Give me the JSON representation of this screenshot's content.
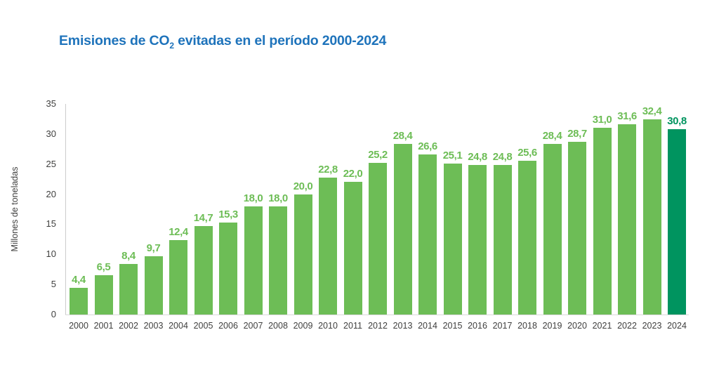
{
  "title": {
    "pre": "Emisiones de CO",
    "sub": "2",
    "post": " evitadas en el período 2000-2024"
  },
  "colors": {
    "title": "#1e73bb",
    "axis_line": "#cccccc",
    "tick_text": "#3f3f3e"
  },
  "chart_data": {
    "type": "bar",
    "title": "Emisiones de CO2 evitadas en el período 2000-2024",
    "categories": [
      "2000",
      "2001",
      "2002",
      "2003",
      "2004",
      "2005",
      "2006",
      "2007",
      "2008",
      "2009",
      "2010",
      "2011",
      "2012",
      "2013",
      "2014",
      "2015",
      "2016",
      "2017",
      "2018",
      "2019",
      "2020",
      "2021",
      "2022",
      "2023",
      "2024"
    ],
    "values": [
      4.4,
      6.5,
      8.4,
      9.7,
      12.4,
      14.7,
      15.3,
      18.0,
      18.0,
      20.0,
      22.8,
      22.0,
      25.2,
      28.4,
      26.6,
      25.1,
      24.8,
      24.8,
      25.6,
      28.4,
      28.7,
      31.0,
      31.6,
      32.4,
      30.8
    ],
    "value_labels": [
      "4,4",
      "6,5",
      "8,4",
      "9,7",
      "12,4",
      "14,7",
      "15,3",
      "18,0",
      "18,0",
      "20,0",
      "22,8",
      "22,0",
      "25,2",
      "28,4",
      "26,6",
      "25,1",
      "24,8",
      "24,8",
      "25,6",
      "28,4",
      "28,7",
      "31,0",
      "31,6",
      "32,4",
      "30,8"
    ],
    "xlabel": "",
    "ylabel": "Millones de toneladas",
    "ylim": [
      0,
      35
    ],
    "yticks": [
      0,
      5,
      10,
      15,
      20,
      25,
      30,
      35
    ],
    "grid": false,
    "legend": "none",
    "bar_color": "#6dbd56",
    "label_color": "#6dbd56",
    "highlight_index": 24,
    "highlight_color": "#00945f",
    "highlight_label_color": "#00945f"
  }
}
